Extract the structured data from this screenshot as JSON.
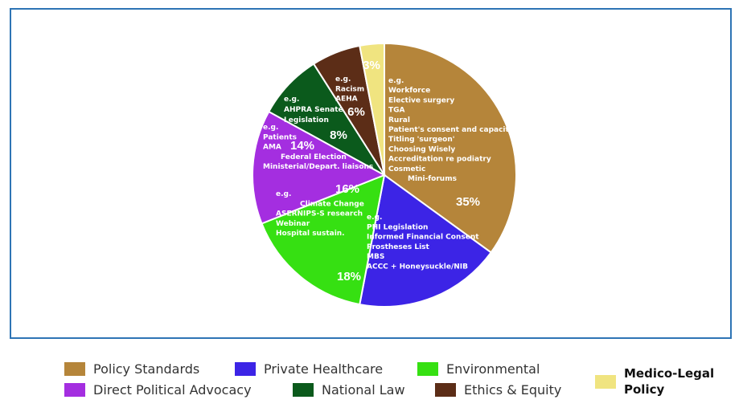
{
  "chart_data": {
    "type": "pie",
    "title": "",
    "start_slice": "Policy Standards",
    "direction": "clockwise",
    "slices": [
      {
        "label": "Policy Standards",
        "value": 35,
        "pct_label": "35%",
        "color": "#b5853a",
        "examples": [
          "e.g.",
          "Workforce",
          "Elective surgery",
          "TGA",
          "Rural",
          "Patient's consent and capacity",
          "Titling 'surgeon'",
          "Choosing Wisely",
          "Accreditation re podiatry",
          "Cosmetic",
          "Mini-forums"
        ]
      },
      {
        "label": "Private Healthcare",
        "value": 18,
        "pct_label": "18%",
        "color": "#3c24e6",
        "examples": [
          "e.g.",
          "PHI Legislation",
          "Informed Financial Consent",
          "Prostheses List",
          "MBS",
          "ACCC + Honeysuckle/NIB"
        ]
      },
      {
        "label": "Environmental",
        "value": 16,
        "pct_label": "16%",
        "color": "#36e012",
        "examples": [
          "e.g.",
          "Climate Change",
          "ASERNIPS-S research",
          "Webinar",
          "Hospital sustain."
        ]
      },
      {
        "label": "Direct Political Advocacy",
        "value": 14,
        "pct_label": "14%",
        "color": "#a42ee0",
        "examples": [
          "e.g.",
          "Patients",
          "AMA",
          "Federal Election",
          "Ministerial/Depart. liaisons"
        ]
      },
      {
        "label": "National Law",
        "value": 8,
        "pct_label": "8%",
        "color": "#0b5a1c",
        "examples": [
          "e.g.",
          "AHPRA Senate",
          "Legislation"
        ]
      },
      {
        "label": "Ethics & Equity",
        "value": 6,
        "pct_label": "6%",
        "color": "#5c2d17",
        "examples": [
          "e.g.",
          "Racism",
          "AEHA"
        ]
      },
      {
        "label": "Medico-Legal\nPolicy",
        "value": 3,
        "pct_label": "3%",
        "color": "#f0e480",
        "examples": []
      }
    ],
    "legend_placement": "bottom"
  }
}
